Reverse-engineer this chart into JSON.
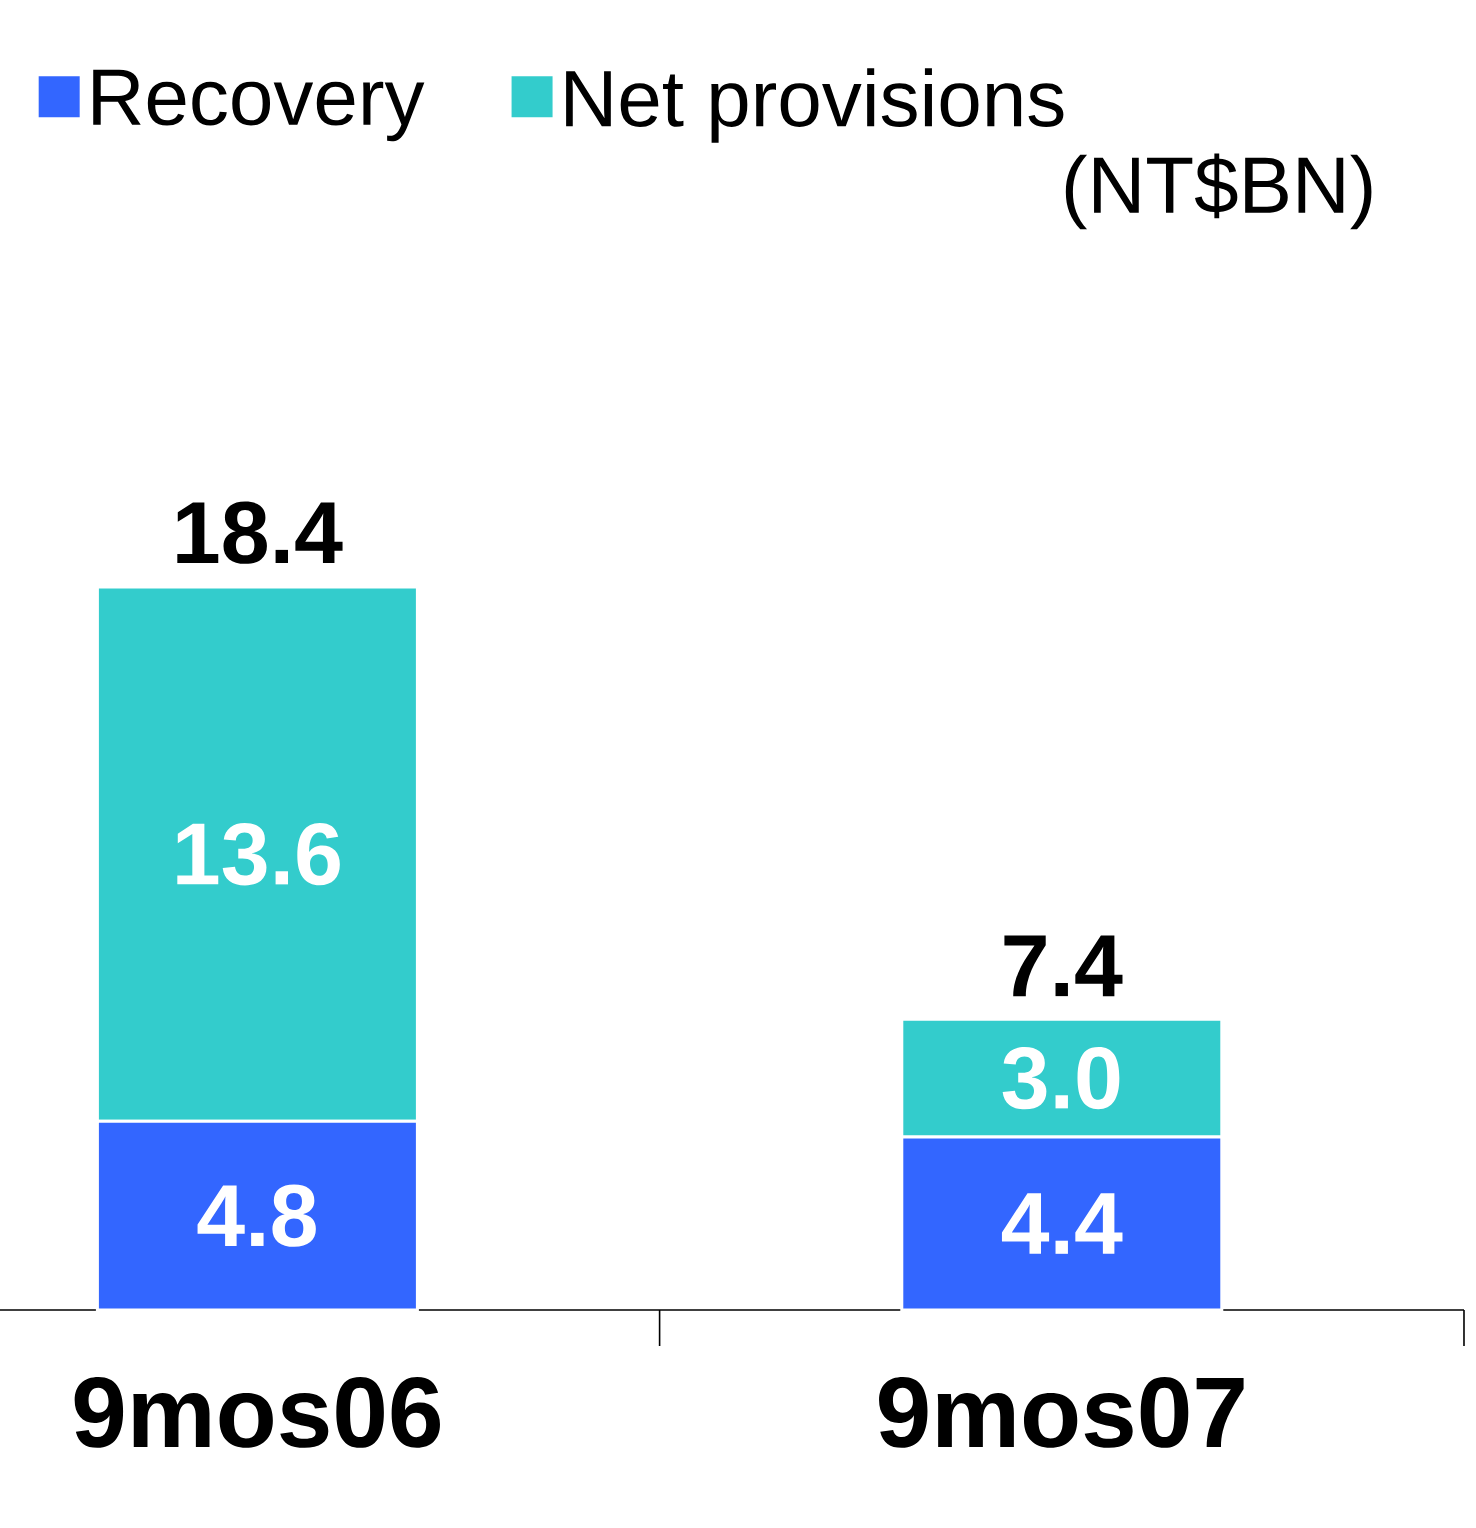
{
  "chart_data": {
    "type": "bar",
    "stacked": true,
    "categories": [
      "9mos06",
      "9mos07"
    ],
    "series": [
      {
        "name": "Recovery",
        "color": "#3366ff",
        "values": [
          4.8,
          4.4
        ],
        "value_labels": [
          "4.8",
          "4.4"
        ]
      },
      {
        "name": "Net provisions",
        "color": "#33cccc",
        "values": [
          13.6,
          3.0
        ],
        "value_labels": [
          "13.6",
          "3.0"
        ]
      }
    ],
    "totals": [
      "18.4",
      "7.4"
    ],
    "legend": "top",
    "annotations": [
      "(NT$BN)"
    ]
  }
}
